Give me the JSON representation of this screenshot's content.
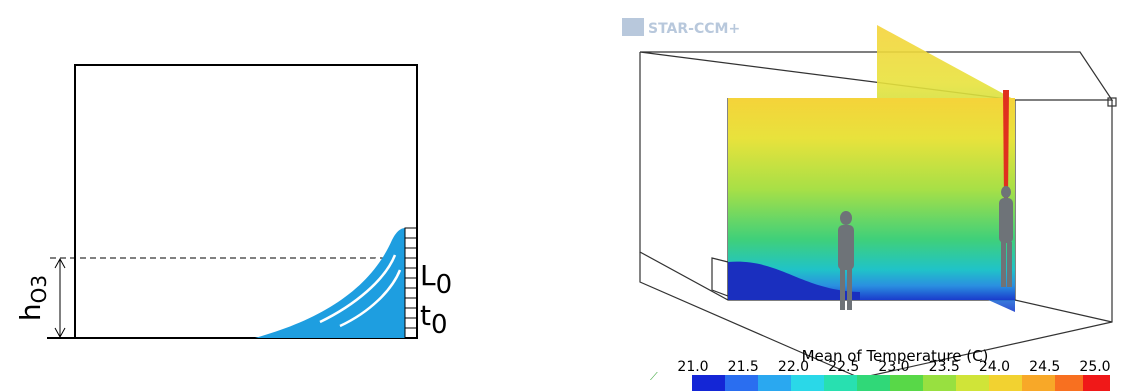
{
  "left_diagram": {
    "height_label": {
      "main": "h",
      "sub": "O3"
    },
    "length_label": {
      "main": "L",
      "sub": "0"
    },
    "time_label": {
      "main": "t",
      "sub": "0"
    }
  },
  "right_render": {
    "logo": "STAR-CCM+",
    "colorbar": {
      "title": "Mean of Temperature (C)",
      "tick_labels": [
        "21.0",
        "21.5",
        "22.0",
        "22.5",
        "23.0",
        "23.5",
        "24.0",
        "24.5",
        "25.0"
      ]
    }
  }
}
